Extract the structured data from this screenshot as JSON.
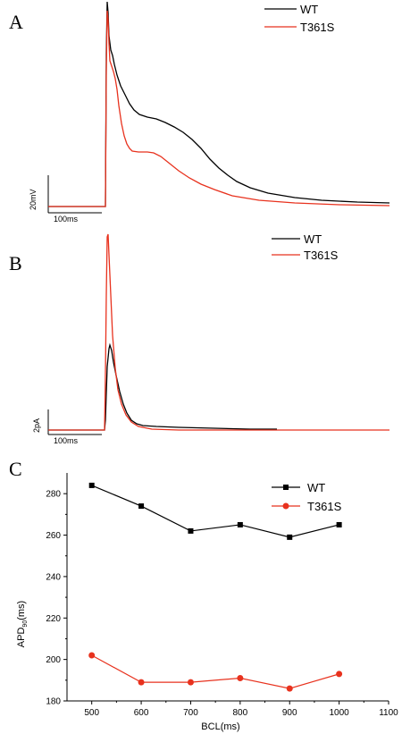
{
  "colors": {
    "wt": "#000000",
    "t361s": "#e8321e",
    "axis": "#000000"
  },
  "chart_data": [
    {
      "panel": "A",
      "type": "line",
      "series": [
        {
          "name": "WT",
          "color": "#000000"
        },
        {
          "name": "T361S",
          "color": "#e8321e"
        }
      ],
      "scale_bar": {
        "voltage": "20mV",
        "time": "100ms"
      }
    },
    {
      "panel": "B",
      "type": "line",
      "series": [
        {
          "name": "WT",
          "color": "#000000"
        },
        {
          "name": "T361S",
          "color": "#e8321e"
        }
      ],
      "scale_bar": {
        "current": "2pA",
        "time": "100ms"
      }
    },
    {
      "panel": "C",
      "type": "line",
      "xlabel": "BCL(ms)",
      "ylabel_main": "APD",
      "ylabel_sub": "90",
      "ylabel_unit": "(ms)",
      "xlim": [
        450,
        1100
      ],
      "ylim": [
        180,
        290
      ],
      "x_ticks": [
        500,
        600,
        700,
        800,
        900,
        1000,
        1100
      ],
      "y_ticks": [
        180,
        200,
        220,
        240,
        260,
        280
      ],
      "x": [
        500,
        600,
        700,
        800,
        900,
        1000
      ],
      "series": [
        {
          "name": "WT",
          "color": "#000000",
          "marker": "square",
          "values": [
            284,
            274,
            262,
            265,
            259,
            265
          ]
        },
        {
          "name": "T361S",
          "color": "#e8321e",
          "marker": "circle",
          "values": [
            202,
            189,
            189,
            191,
            186,
            193
          ]
        }
      ],
      "legend": "top-right",
      "grid": false
    }
  ]
}
